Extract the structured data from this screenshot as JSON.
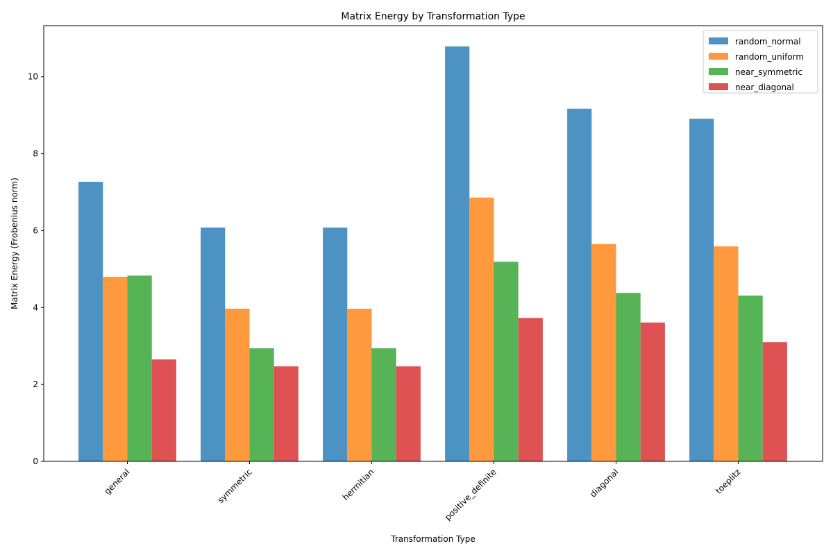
{
  "chart_data": {
    "type": "bar",
    "title": "Matrix Energy by Transformation Type",
    "xlabel": "Transformation Type",
    "ylabel": "Matrix Energy (Frobenius norm)",
    "categories": [
      "general",
      "symmetric",
      "hermitian",
      "positive_definite",
      "diagonal",
      "toeplitz"
    ],
    "ylim": [
      0,
      11.33
    ],
    "yticks": [
      0,
      2,
      4,
      6,
      8,
      10
    ],
    "grid": false,
    "legend_position": "top-right",
    "series": [
      {
        "name": "random_normal",
        "color": "#4c92c3",
        "values": [
          7.27,
          6.08,
          6.08,
          10.79,
          9.17,
          8.91
        ]
      },
      {
        "name": "random_uniform",
        "color": "#ff993e",
        "values": [
          4.8,
          3.97,
          3.97,
          6.86,
          5.65,
          5.59
        ]
      },
      {
        "name": "near_symmetric",
        "color": "#56b356",
        "values": [
          4.83,
          2.94,
          2.94,
          5.19,
          4.38,
          4.31
        ]
      },
      {
        "name": "near_diagonal",
        "color": "#de5253",
        "values": [
          2.65,
          2.47,
          2.47,
          3.73,
          3.61,
          3.1
        ]
      }
    ]
  }
}
